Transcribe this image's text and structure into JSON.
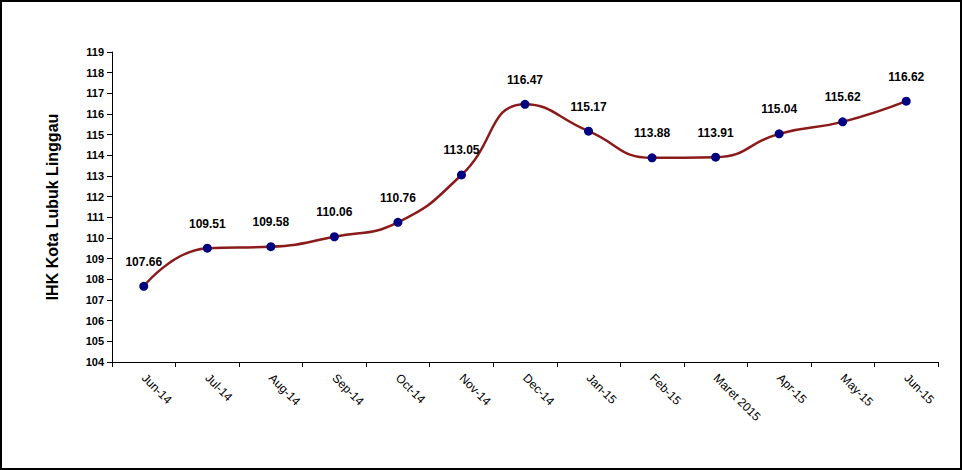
{
  "chart_data": {
    "type": "line",
    "y_label": "IHK Kota Lubuk Linggau",
    "categories": [
      "Jun-14",
      "Jul-14",
      "Aug-14",
      "Sep-14",
      "Oct-14",
      "Nov-14",
      "Dec-14",
      "Jan-15",
      "Feb-15",
      "Maret 2015",
      "Apr-15",
      "May-15",
      "Jun-15"
    ],
    "values": [
      107.66,
      109.51,
      109.58,
      110.06,
      110.76,
      113.05,
      116.47,
      115.17,
      113.88,
      113.91,
      115.04,
      115.62,
      116.62
    ],
    "color": "#8b1a1a",
    "marker": "circle",
    "line_style": "smooth",
    "ylim": [
      104,
      119
    ],
    "yticks": [
      104,
      105,
      106,
      107,
      108,
      109,
      110,
      111,
      112,
      113,
      114,
      115,
      116,
      117,
      118,
      119
    ],
    "grid": false,
    "data_labels": true
  }
}
